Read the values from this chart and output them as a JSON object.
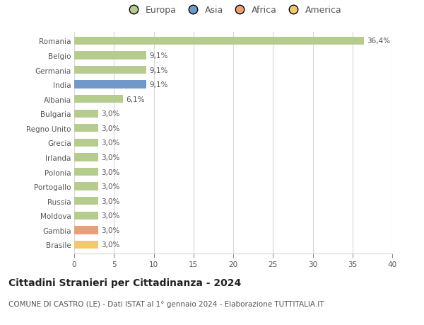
{
  "countries": [
    "Romania",
    "Belgio",
    "Germania",
    "India",
    "Albania",
    "Bulgaria",
    "Regno Unito",
    "Grecia",
    "Irlanda",
    "Polonia",
    "Portogallo",
    "Russia",
    "Moldova",
    "Gambia",
    "Brasile"
  ],
  "values": [
    36.4,
    9.1,
    9.1,
    9.1,
    6.1,
    3.0,
    3.0,
    3.0,
    3.0,
    3.0,
    3.0,
    3.0,
    3.0,
    3.0,
    3.0
  ],
  "labels": [
    "36,4%",
    "9,1%",
    "9,1%",
    "9,1%",
    "6,1%",
    "3,0%",
    "3,0%",
    "3,0%",
    "3,0%",
    "3,0%",
    "3,0%",
    "3,0%",
    "3,0%",
    "3,0%",
    "3,0%"
  ],
  "continents": [
    "Europa",
    "Europa",
    "Europa",
    "Asia",
    "Europa",
    "Europa",
    "Europa",
    "Europa",
    "Europa",
    "Europa",
    "Europa",
    "Europa",
    "Europa",
    "Africa",
    "America"
  ],
  "continent_colors": {
    "Europa": "#b5cc8e",
    "Asia": "#7098c8",
    "Africa": "#e8a07a",
    "America": "#f0c96e"
  },
  "legend_order": [
    "Europa",
    "Asia",
    "Africa",
    "America"
  ],
  "legend_colors": [
    "#b5cc8e",
    "#7098c8",
    "#e8a07a",
    "#f0c96e"
  ],
  "title": "Cittadini Stranieri per Cittadinanza - 2024",
  "subtitle": "COMUNE DI CASTRO (LE) - Dati ISTAT al 1° gennaio 2024 - Elaborazione TUTTITALIA.IT",
  "xlim": [
    0,
    40
  ],
  "xticks": [
    0,
    5,
    10,
    15,
    20,
    25,
    30,
    35,
    40
  ],
  "background_color": "#ffffff",
  "grid_color": "#d8d8d8",
  "bar_height": 0.55,
  "label_fontsize": 7.5,
  "tick_fontsize": 7.5,
  "title_fontsize": 10,
  "subtitle_fontsize": 7.5
}
